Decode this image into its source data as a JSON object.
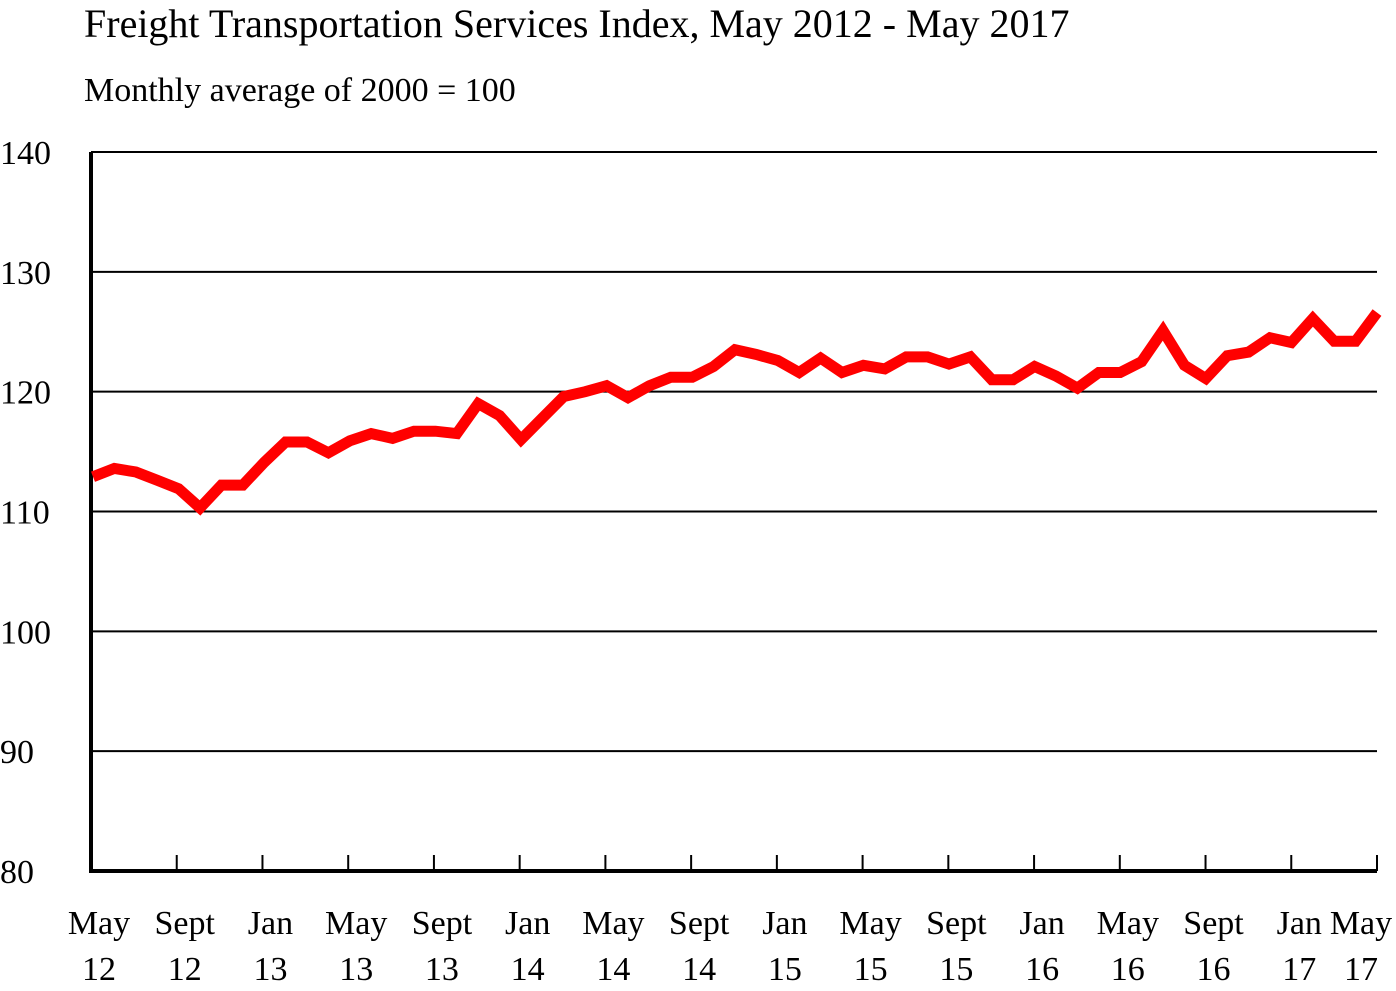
{
  "chart_data": {
    "type": "line",
    "title": "Freight Transportation Services Index, May 2012 - May 2017",
    "subtitle": "Monthly average of 2000 = 100",
    "xlabel": "",
    "ylabel": "",
    "ylim": [
      80,
      140
    ],
    "yticks": [
      80,
      90,
      100,
      110,
      120,
      130,
      140
    ],
    "grid": true,
    "line_color": "#ff0000",
    "x_tick_labels": [
      [
        "May",
        "12"
      ],
      [
        "Sept",
        "12"
      ],
      [
        "Jan",
        "13"
      ],
      [
        "May",
        "13"
      ],
      [
        "Sept",
        "13"
      ],
      [
        "Jan",
        "14"
      ],
      [
        "May",
        "14"
      ],
      [
        "Sept",
        "14"
      ],
      [
        "Jan",
        "15"
      ],
      [
        "May",
        "15"
      ],
      [
        "Sept",
        "15"
      ],
      [
        "Jan",
        "16"
      ],
      [
        "May",
        "16"
      ],
      [
        "Sept",
        "16"
      ],
      [
        "Jan",
        "17"
      ],
      [
        "May",
        "17"
      ]
    ],
    "x_start": "2012-05",
    "x_end": "2017-05",
    "values": [
      112.9,
      113.6,
      113.3,
      112.6,
      111.9,
      110.3,
      112.2,
      112.2,
      114.1,
      115.8,
      115.8,
      114.9,
      115.9,
      116.5,
      116.1,
      116.7,
      116.7,
      116.5,
      119.0,
      118.0,
      116.0,
      117.8,
      119.6,
      120.0,
      120.5,
      119.5,
      120.5,
      121.2,
      121.2,
      122.1,
      123.5,
      123.1,
      122.6,
      121.6,
      122.8,
      121.6,
      122.2,
      121.9,
      122.9,
      122.9,
      122.3,
      122.9,
      121.0,
      121.0,
      122.1,
      121.3,
      120.3,
      121.6,
      121.6,
      122.5,
      125.1,
      122.2,
      121.1,
      123.0,
      123.3,
      124.5,
      124.1,
      126.1,
      124.2,
      124.2,
      126.6
    ]
  }
}
